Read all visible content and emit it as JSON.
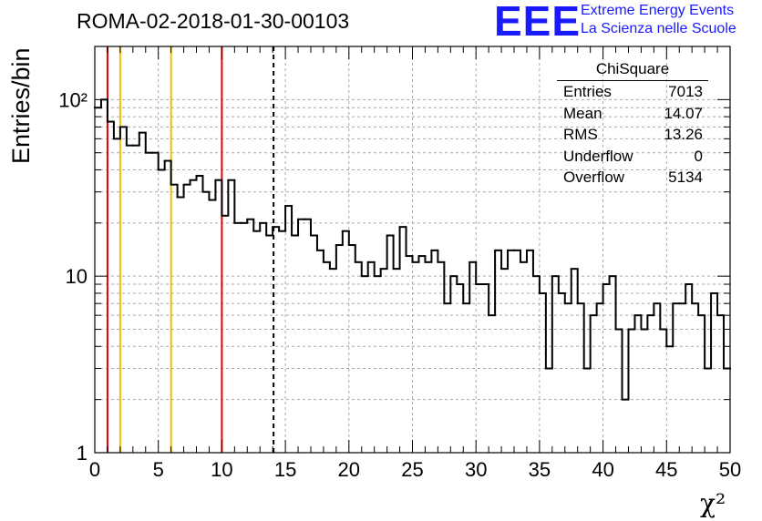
{
  "title": "ROMA-02-2018-01-30-00103",
  "logo": {
    "text": "EEE",
    "line1": "Extreme Energy Events",
    "line2": "La Scienza nelle Scuole"
  },
  "stats": {
    "title": "ChiSquare",
    "rows": [
      {
        "label": "Entries",
        "value": "7013"
      },
      {
        "label": "Mean",
        "value": "14.07"
      },
      {
        "label": "RMS",
        "value": "13.26"
      },
      {
        "label": "Underflow",
        "value": "0"
      },
      {
        "label": "Overflow",
        "value": "5134"
      }
    ]
  },
  "chart_data": {
    "type": "histogram",
    "title": "ROMA-02-2018-01-30-00103",
    "xlabel": "χ²",
    "ylabel": "Entries/bin",
    "xlim": [
      0,
      50
    ],
    "ylim": [
      1,
      200
    ],
    "yscale": "log",
    "grid": true,
    "bin_width": 0.5,
    "x_ticks": [
      "0",
      "5",
      "10",
      "15",
      "20",
      "25",
      "30",
      "35",
      "40",
      "45",
      "50"
    ],
    "y_ticks": [
      {
        "value": 1,
        "label": "1"
      },
      {
        "value": 10,
        "label": "10"
      },
      {
        "value": 100,
        "label": "10²"
      }
    ],
    "values": [
      90,
      100,
      75,
      60,
      70,
      55,
      55,
      65,
      50,
      50,
      40,
      45,
      33,
      28,
      33,
      35,
      37,
      30,
      27,
      35,
      22,
      35,
      20,
      20,
      21,
      18,
      20,
      17,
      19,
      18,
      25,
      17,
      21,
      21,
      17,
      14,
      12,
      11,
      15,
      18,
      15,
      12,
      10,
      12,
      10,
      11,
      17,
      11,
      19,
      13,
      12,
      13,
      12,
      14,
      12,
      7,
      10,
      9,
      7,
      12,
      9,
      9,
      6,
      14,
      11,
      14,
      14,
      12,
      14,
      10,
      8,
      3,
      10,
      8,
      7,
      11,
      7,
      3,
      6,
      7,
      9,
      10,
      5,
      2,
      5,
      6,
      5,
      6,
      7,
      5,
      4,
      7,
      7,
      9,
      7,
      6,
      3,
      8,
      6,
      3
    ],
    "vlines": [
      {
        "x": 1,
        "color": "#e60000",
        "style": "solid"
      },
      {
        "x": 2,
        "color": "#f0c000",
        "style": "solid"
      },
      {
        "x": 6,
        "color": "#f0c000",
        "style": "solid"
      },
      {
        "x": 10,
        "color": "#e60000",
        "style": "solid"
      },
      {
        "x": 14.07,
        "color": "#000000",
        "style": "dashed"
      }
    ],
    "line_color": "#000000"
  }
}
